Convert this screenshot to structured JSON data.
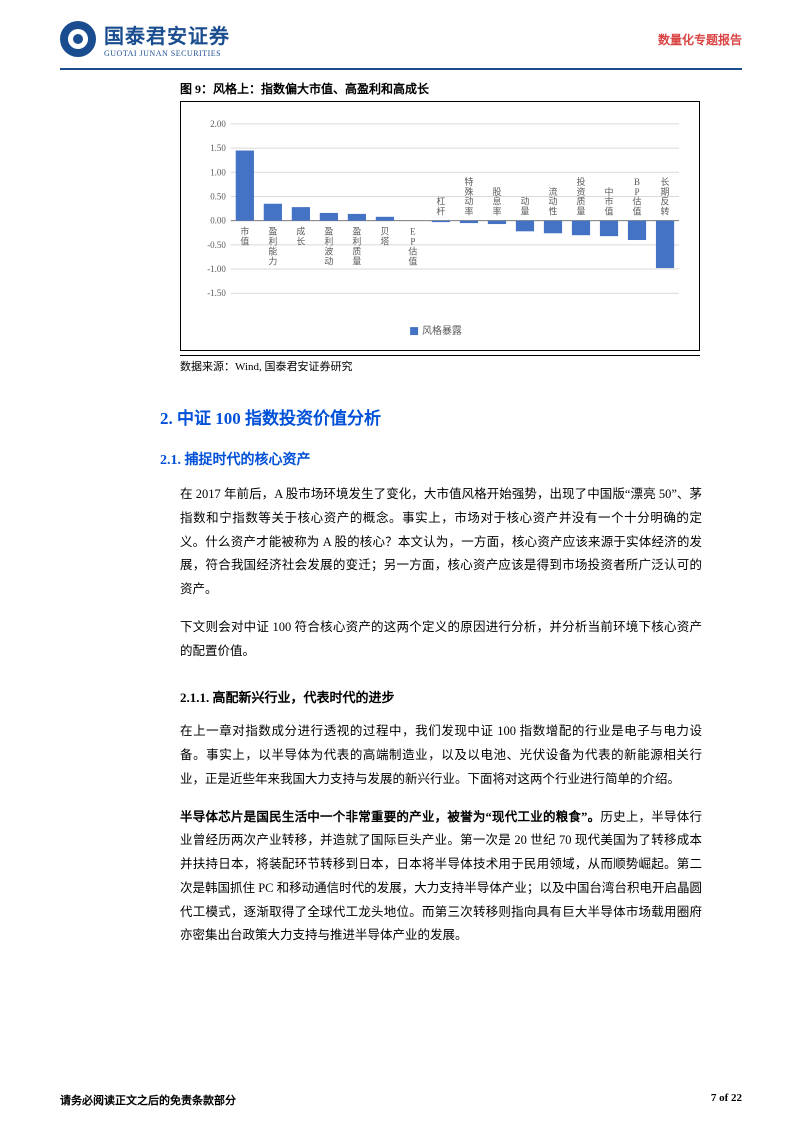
{
  "header": {
    "logo_zh": "国泰君安证券",
    "logo_en": "GUOTAI JUNAN SECURITIES",
    "right_text": "数量化专题报告"
  },
  "figure": {
    "title": "图 9：风格上：指数偏大市值、高盈利和高成长",
    "source": "数据来源：Wind, 国泰君安证券研究",
    "chart": {
      "type": "bar",
      "ylim": [
        -1.5,
        2.0
      ],
      "yticks": [
        -1.5,
        -1.0,
        -0.5,
        0.0,
        0.5,
        1.0,
        1.5,
        2.0
      ],
      "ytick_labels": [
        "-1.50",
        "-1.00",
        "-0.50",
        "0.00",
        "0.50",
        "1.00",
        "1.50",
        "2.00"
      ],
      "categories": [
        "市值",
        "盈利能力",
        "成长",
        "盈利波动",
        "盈利质量",
        "贝塔",
        "EP估值",
        "杠杆",
        "特殊动率",
        "股息率",
        "动量",
        "流动性",
        "投资质量",
        "中市值",
        "BP估值",
        "长期反转"
      ],
      "values": [
        1.45,
        0.35,
        0.28,
        0.16,
        0.14,
        0.08,
        0.0,
        -0.03,
        -0.05,
        -0.07,
        -0.22,
        -0.26,
        -0.3,
        -0.32,
        -0.4,
        -0.98
      ],
      "bar_color": "#4472c4",
      "grid_color": "#d9d9d9",
      "axis_color": "#808080",
      "label_color": "#595959",
      "legend": "风格暴露",
      "background": "#ffffff"
    }
  },
  "sections": {
    "h2": "2. 中证 100 指数投资价值分析",
    "h3": "2.1. 捕捉时代的核心资产",
    "p1": "在 2017 年前后，A 股市场环境发生了变化，大市值风格开始强势，出现了中国版“漂亮 50”、茅指数和宁指数等关于核心资产的概念。事实上，市场对于核心资产并没有一个十分明确的定义。什么资产才能被称为 A 股的核心？本文认为，一方面，核心资产应该来源于实体经济的发展，符合我国经济社会发展的变迁；另一方面，核心资产应该是得到市场投资者所广泛认可的资产。",
    "p2": "下文则会对中证 100 符合核心资产的这两个定义的原因进行分析，并分析当前环境下核心资产的配置价值。",
    "h4": "2.1.1. 高配新兴行业，代表时代的进步",
    "p3": "在上一章对指数成分进行透视的过程中，我们发现中证 100 指数增配的行业是电子与电力设备。事实上，以半导体为代表的高端制造业，以及以电池、光伏设备为代表的新能源相关行业，正是近些年来我国大力支持与发展的新兴行业。下面将对这两个行业进行简单的介绍。",
    "p4_bold": "半导体芯片是国民生活中一个非常重要的产业，被誉为“现代工业的粮食”。",
    "p4_rest": "历史上，半导体行业曾经历两次产业转移，并造就了国际巨头产业。第一次是 20 世纪 70 现代美国为了转移成本并扶持日本，将装配环节转移到日本，日本将半导体技术用于民用领域，从而顺势崛起。第二次是韩国抓住 PC 和移动通信时代的发展，大力支持半导体产业；以及中国台湾台积电开启晶圆代工模式，逐渐取得了全球代工龙头地位。而第三次转移则指向具有巨大半导体市场载用圈府亦密集出台政策大力支持与推进半导体产业的发展。"
  },
  "footer": {
    "left": "请务必阅读正文之后的免责条款部分",
    "right": "7 of 22"
  }
}
